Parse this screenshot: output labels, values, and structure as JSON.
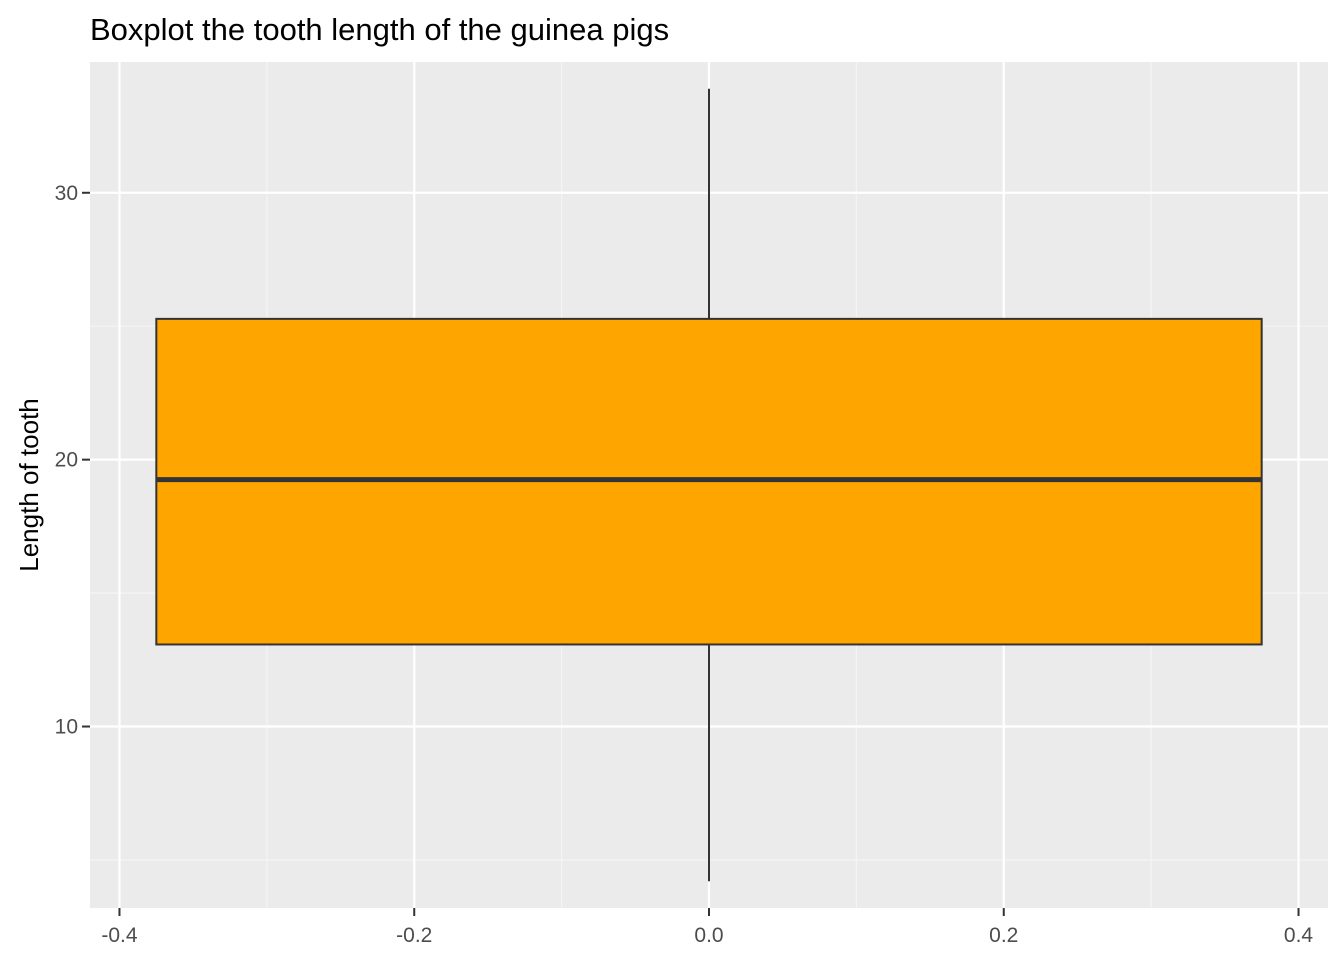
{
  "chart_data": {
    "type": "boxplot",
    "title": "Boxplot the tooth length of the guinea pigs",
    "xlabel": "",
    "ylabel": "Length of tooth",
    "xlim": [
      -0.42,
      0.42
    ],
    "ylim": [
      3.2,
      34.9
    ],
    "x_ticks": [
      -0.4,
      -0.2,
      0.0,
      0.2,
      0.4
    ],
    "x_tick_labels": [
      "-0.4",
      "-0.2",
      "0.0",
      "0.2",
      "0.4"
    ],
    "y_ticks": [
      10,
      20,
      30
    ],
    "y_tick_labels": [
      "10",
      "20",
      "30"
    ],
    "grid": true,
    "box": {
      "x": 0.0,
      "width": 0.75,
      "min": 4.2,
      "q1": 13.075,
      "median": 19.25,
      "q3": 25.275,
      "max": 33.9,
      "fill": "#FFA500",
      "outline": "#333333"
    },
    "colors": {
      "panel_background": "#EBEBEB",
      "grid_major": "#FFFFFF",
      "grid_minor": "#F5F5F5",
      "tick_label": "#4D4D4D",
      "tick_mark": "#333333"
    }
  }
}
